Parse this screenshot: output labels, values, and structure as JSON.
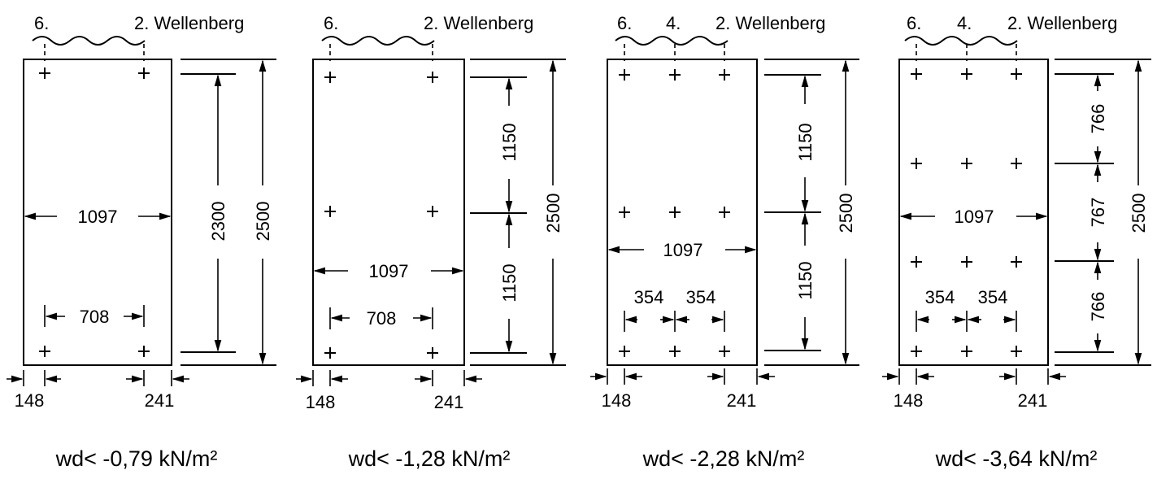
{
  "panels": [
    {
      "wave_labels": [
        "6.",
        "2. Wellenberg"
      ],
      "width_label": "1097",
      "spacing_label": "708",
      "inner_height_label": "2300",
      "total_height_label": "2500",
      "edge_left_label": "148",
      "edge_right_label": "241",
      "caption": "wd< -0,79 kN/m²"
    },
    {
      "wave_labels": [
        "6.",
        "2. Wellenberg"
      ],
      "width_label": "1097",
      "spacing_label": "708",
      "segment_labels": [
        "1150",
        "1150"
      ],
      "total_height_label": "2500",
      "edge_left_label": "148",
      "edge_right_label": "241",
      "caption": "wd< -1,28 kN/m²"
    },
    {
      "wave_labels": [
        "6.",
        "4.",
        "2. Wellenberg"
      ],
      "width_label": "1097",
      "spacing_labels": [
        "354",
        "354"
      ],
      "segment_labels": [
        "1150",
        "1150"
      ],
      "total_height_label": "2500",
      "edge_left_label": "148",
      "edge_right_label": "241",
      "caption": "wd< -2,28 kN/m²"
    },
    {
      "wave_labels": [
        "6.",
        "4.",
        "2. Wellenberg"
      ],
      "width_label": "1097",
      "spacing_labels": [
        "354",
        "354"
      ],
      "segment_labels": [
        "766",
        "767",
        "766"
      ],
      "total_height_label": "2500",
      "edge_left_label": "148",
      "edge_right_label": "241",
      "caption": "wd< -3,64 kN/m²"
    }
  ]
}
